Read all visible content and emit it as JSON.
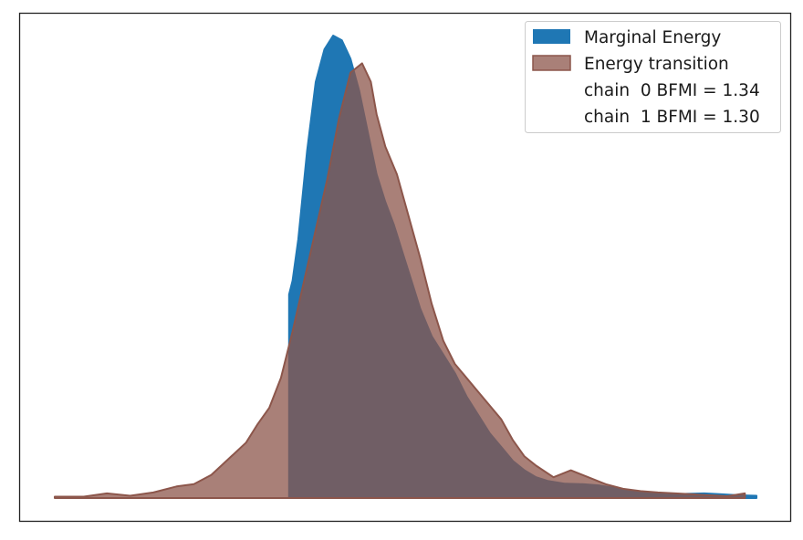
{
  "chart_data": {
    "type": "area",
    "title": "",
    "xlabel": "",
    "ylabel": "",
    "x_range": [
      -6.3,
      5.8
    ],
    "y_range": [
      0,
      1.0
    ],
    "grid": false,
    "legend_position": "top-right",
    "series": [
      {
        "name": "Marginal Energy",
        "color": "#1f77b4",
        "edge_color": "#1f77b4",
        "opacity": 1.0,
        "x": [
          -2.26,
          -2.26,
          -2.2,
          -2.1,
          -1.95,
          -1.8,
          -1.65,
          -1.5,
          -1.35,
          -1.2,
          -1.05,
          -0.9,
          -0.75,
          -0.6,
          -0.45,
          -0.3,
          -0.15,
          0.0,
          0.2,
          0.4,
          0.6,
          0.8,
          1.0,
          1.2,
          1.4,
          1.6,
          1.8,
          2.0,
          2.2,
          2.5,
          2.8,
          3.1,
          3.4,
          3.7,
          4.0,
          4.3,
          4.6,
          4.9,
          5.2,
          5.5,
          5.8
        ],
        "values": [
          0,
          0.44,
          0.47,
          0.56,
          0.75,
          0.9,
          0.97,
          1.0,
          0.99,
          0.95,
          0.88,
          0.79,
          0.7,
          0.64,
          0.59,
          0.53,
          0.47,
          0.41,
          0.35,
          0.31,
          0.27,
          0.22,
          0.18,
          0.14,
          0.11,
          0.08,
          0.06,
          0.045,
          0.037,
          0.031,
          0.03,
          0.027,
          0.021,
          0.014,
          0.01,
          0.007,
          0.009,
          0.01,
          0.008,
          0.006,
          0.005
        ]
      },
      {
        "name": "Energy transition",
        "color": "#8c564b",
        "edge_color": "#8c564b",
        "opacity": 0.75,
        "x": [
          -6.3,
          -5.8,
          -5.4,
          -5.0,
          -4.6,
          -4.2,
          -3.9,
          -3.6,
          -3.3,
          -3.0,
          -2.8,
          -2.6,
          -2.4,
          -2.2,
          -2.0,
          -1.8,
          -1.6,
          -1.4,
          -1.2,
          -1.0,
          -0.85,
          -0.75,
          -0.6,
          -0.4,
          -0.2,
          0.0,
          0.2,
          0.4,
          0.6,
          0.8,
          1.0,
          1.2,
          1.4,
          1.6,
          1.8,
          2.0,
          2.3,
          2.6,
          2.9,
          3.2,
          3.5,
          3.8,
          4.1,
          4.4,
          4.7,
          5.0,
          5.3,
          5.6
        ],
        "values": [
          0.003,
          0.003,
          0.01,
          0.005,
          0.012,
          0.025,
          0.03,
          0.05,
          0.085,
          0.12,
          0.16,
          0.195,
          0.26,
          0.36,
          0.47,
          0.58,
          0.69,
          0.82,
          0.92,
          0.94,
          0.9,
          0.83,
          0.76,
          0.7,
          0.61,
          0.52,
          0.42,
          0.34,
          0.29,
          0.26,
          0.23,
          0.2,
          0.17,
          0.125,
          0.09,
          0.07,
          0.045,
          0.06,
          0.045,
          0.03,
          0.02,
          0.015,
          0.012,
          0.01,
          0.008,
          0.006,
          0.004,
          0.01
        ]
      }
    ],
    "legend": [
      {
        "label": "Marginal Energy",
        "swatch": "#1f77b4"
      },
      {
        "label": "Energy transition",
        "swatch": "#8c564b"
      },
      {
        "label": "chain  0 BFMI = 1.34",
        "swatch": null
      },
      {
        "label": "chain  1 BFMI = 1.30",
        "swatch": null
      }
    ]
  }
}
